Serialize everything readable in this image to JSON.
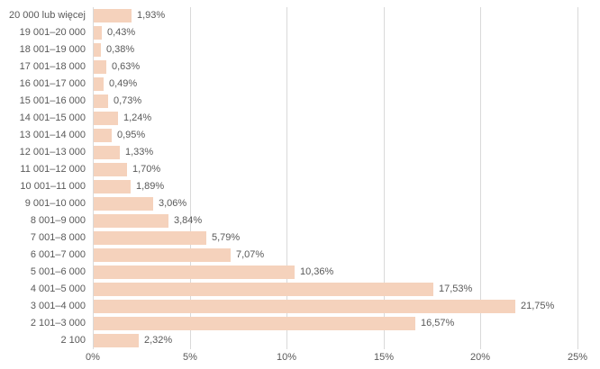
{
  "chart_data": {
    "type": "bar",
    "orientation": "horizontal",
    "title": "",
    "xlabel": "",
    "ylabel": "",
    "categories": [
      "20 000 lub więcej",
      "19 001–20 000",
      "18 001–19 000",
      "17 001–18 000",
      "16 001–17 000",
      "15 001–16 000",
      "14 001–15 000",
      "13 001–14 000",
      "12 001–13 000",
      "11 001–12 000",
      "10 001–11 000",
      "9 001–10 000",
      "8 001–9 000",
      "7 001–8 000",
      "6 001–7 000",
      "5 001–6 000",
      "4 001–5 000",
      "3 001–4 000",
      "2 101–3 000",
      "2 100"
    ],
    "values": [
      1.93,
      0.43,
      0.38,
      0.63,
      0.49,
      0.73,
      1.24,
      0.95,
      1.33,
      1.7,
      1.89,
      3.06,
      3.84,
      5.79,
      7.07,
      10.36,
      17.53,
      21.75,
      16.57,
      2.32
    ],
    "value_labels": [
      "1,93%",
      "0,43%",
      "0,38%",
      "0,63%",
      "0,49%",
      "0,73%",
      "1,24%",
      "0,95%",
      "1,33%",
      "1,70%",
      "1,89%",
      "3,06%",
      "3,84%",
      "5,79%",
      "7,07%",
      "10,36%",
      "17,53%",
      "21,75%",
      "16,57%",
      "2,32%"
    ],
    "xlim": [
      0,
      25
    ],
    "x_ticks": [
      "0%",
      "5%",
      "10%",
      "15%",
      "20%",
      "25%"
    ],
    "x_tick_values": [
      0,
      5,
      10,
      15,
      20,
      25
    ],
    "grid": "vertical",
    "legend": "none",
    "colors": {
      "bar_fill": "#f5d2bc",
      "gridline": "#d9d9d9",
      "text": "#595959"
    }
  }
}
